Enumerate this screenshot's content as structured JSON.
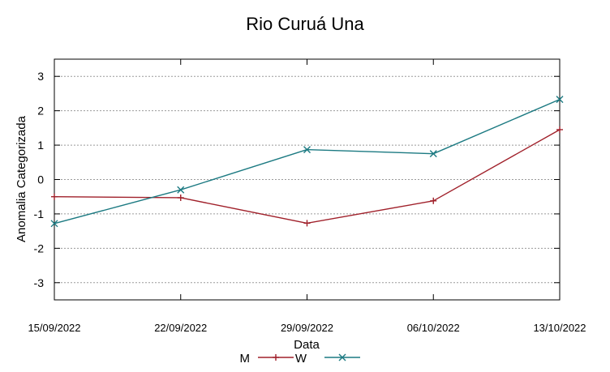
{
  "chart_data": {
    "type": "line",
    "title": "Rio Curuá Una",
    "xlabel": "Data",
    "ylabel": "Anomalia Categorizada",
    "categories": [
      "15/09/2022",
      "22/09/2022",
      "29/09/2022",
      "06/10/2022",
      "13/10/2022"
    ],
    "yticks": [
      "-3",
      "-2",
      "-1",
      "0",
      "1",
      "2",
      "3"
    ],
    "ylim": [
      -3.5,
      3.5
    ],
    "grid": true,
    "legend_position": "bottom",
    "series": [
      {
        "name": "M",
        "color": "#a0202a",
        "marker": "plus",
        "values": [
          -0.5,
          -0.53,
          -1.27,
          -0.62,
          1.45
        ]
      },
      {
        "name": "W",
        "color": "#1c7a82",
        "marker": "cross",
        "values": [
          -1.28,
          -0.3,
          0.87,
          0.75,
          2.33
        ]
      }
    ]
  }
}
